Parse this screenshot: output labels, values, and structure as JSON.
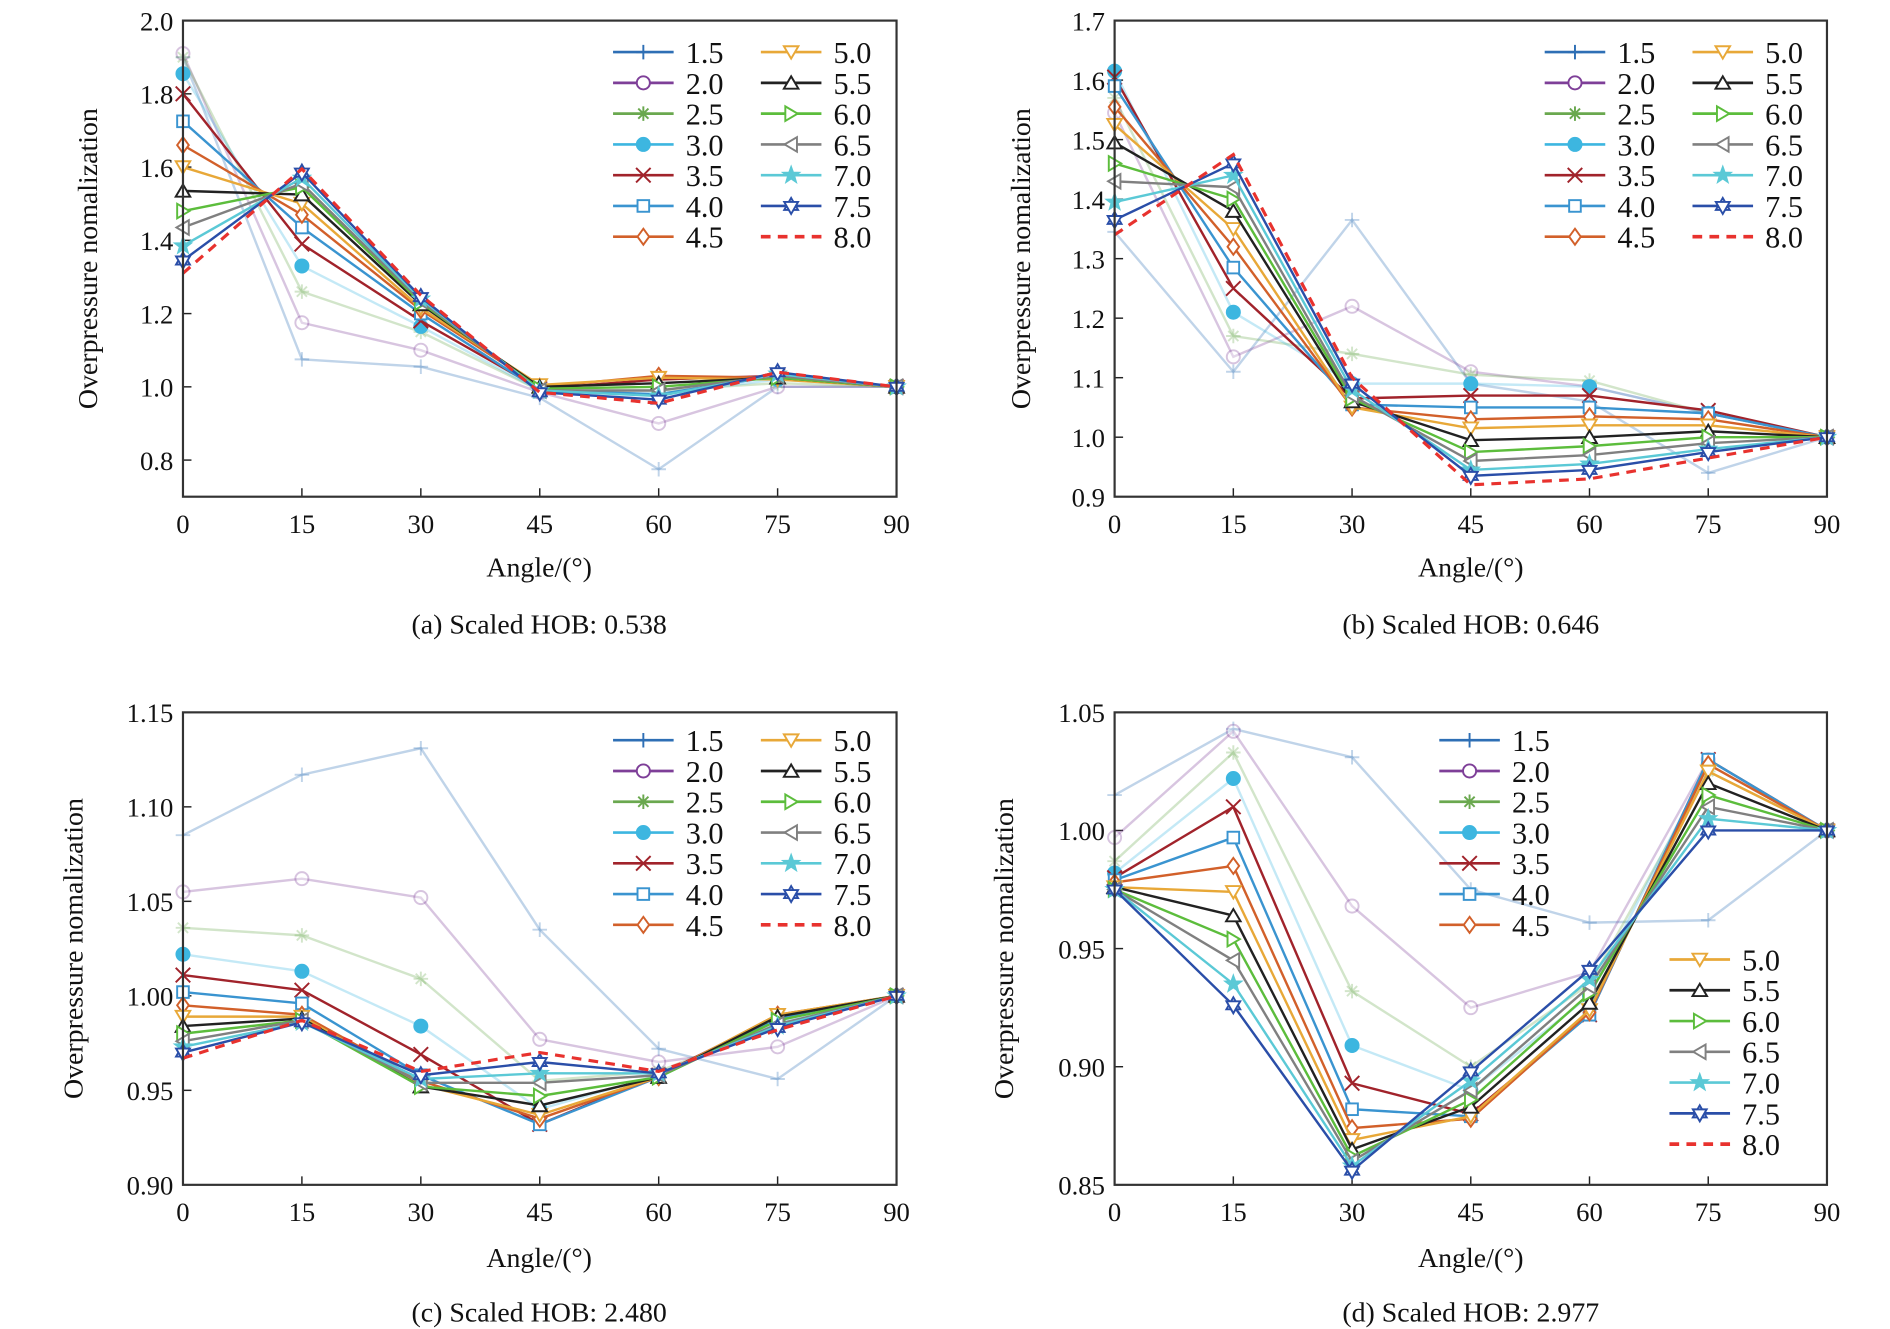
{
  "series_styles": [
    {
      "name": "1.5",
      "color": "#2e6fb5",
      "marker": "plus"
    },
    {
      "name": "2.0",
      "color": "#7e3f98",
      "marker": "circle-open"
    },
    {
      "name": "2.5",
      "color": "#6aa84f",
      "marker": "asterisk"
    },
    {
      "name": "3.0",
      "color": "#3db6e0",
      "marker": "circle-filled"
    },
    {
      "name": "3.5",
      "color": "#a1232b",
      "marker": "x"
    },
    {
      "name": "4.0",
      "color": "#3a94d0",
      "marker": "square-open"
    },
    {
      "name": "4.5",
      "color": "#d2602a",
      "marker": "diamond-open"
    },
    {
      "name": "5.0",
      "color": "#e8a838",
      "marker": "triangle-down-open"
    },
    {
      "name": "5.5",
      "color": "#222222",
      "marker": "triangle-up-open"
    },
    {
      "name": "6.0",
      "color": "#5cbd3c",
      "marker": "triangle-right-open"
    },
    {
      "name": "6.5",
      "color": "#808080",
      "marker": "triangle-left-open"
    },
    {
      "name": "7.0",
      "color": "#5bc9d6",
      "marker": "star-filled"
    },
    {
      "name": "7.5",
      "color": "#2a4ea8",
      "marker": "hexagram"
    },
    {
      "name": "8.0",
      "color": "#e8322e",
      "marker": "none",
      "dashed": true
    }
  ],
  "chart_data": [
    {
      "type": "line",
      "caption": "(a) Scaled HOB: 0.538",
      "xlabel": "Angle/(°)",
      "ylabel": "Overpressure nomalization",
      "x": [
        0,
        15,
        30,
        45,
        60,
        75,
        90
      ],
      "xticks": [
        "0",
        "15",
        "30",
        "45",
        "60",
        "75",
        "90"
      ],
      "yticks": [
        "0.8",
        "1.0",
        "1.2",
        "1.4",
        "1.6",
        "1.8",
        "2.0"
      ],
      "ylim": [
        0.7,
        2.0
      ],
      "legend": "top-right",
      "series": [
        {
          "name": "1.5",
          "values": [
            1.9,
            1.075,
            1.055,
            0.97,
            0.775,
            1.0,
            1.0
          ]
        },
        {
          "name": "2.0",
          "values": [
            1.91,
            1.175,
            1.1,
            0.985,
            0.9,
            1.0,
            1.0
          ]
        },
        {
          "name": "2.5",
          "values": [
            1.9,
            1.26,
            1.15,
            0.99,
            0.99,
            1.01,
            1.0
          ]
        },
        {
          "name": "3.0",
          "values": [
            1.855,
            1.33,
            1.165,
            0.99,
            0.98,
            1.02,
            1.0
          ]
        },
        {
          "name": "3.5",
          "values": [
            1.8,
            1.39,
            1.18,
            0.995,
            1.02,
            1.03,
            1.0
          ]
        },
        {
          "name": "4.0",
          "values": [
            1.725,
            1.435,
            1.2,
            0.99,
            0.98,
            1.03,
            1.0
          ]
        },
        {
          "name": "4.5",
          "values": [
            1.66,
            1.47,
            1.21,
            1.0,
            1.03,
            1.025,
            1.0
          ]
        },
        {
          "name": "5.0",
          "values": [
            1.6,
            1.5,
            1.215,
            1.005,
            1.025,
            1.02,
            1.0
          ]
        },
        {
          "name": "5.5",
          "values": [
            1.535,
            1.525,
            1.225,
            1.0,
            1.01,
            1.025,
            1.0
          ]
        },
        {
          "name": "6.0",
          "values": [
            1.48,
            1.545,
            1.23,
            0.995,
            1.0,
            1.025,
            1.0
          ]
        },
        {
          "name": "6.5",
          "values": [
            1.435,
            1.555,
            1.235,
            0.99,
            0.99,
            1.03,
            1.0
          ]
        },
        {
          "name": "7.0",
          "values": [
            1.385,
            1.57,
            1.24,
            0.99,
            0.975,
            1.035,
            1.0
          ]
        },
        {
          "name": "7.5",
          "values": [
            1.345,
            1.585,
            1.245,
            0.985,
            0.965,
            1.04,
            1.0
          ]
        },
        {
          "name": "8.0",
          "values": [
            1.31,
            1.595,
            1.25,
            0.985,
            0.955,
            1.04,
            1.0
          ]
        }
      ]
    },
    {
      "type": "line",
      "caption": "(b) Scaled HOB: 0.646",
      "xlabel": "Angle/(°)",
      "ylabel": "Overpressure nomalization",
      "x": [
        0,
        15,
        30,
        45,
        60,
        75,
        90
      ],
      "xticks": [
        "0",
        "15",
        "30",
        "45",
        "60",
        "75",
        "90"
      ],
      "yticks": [
        "0.9",
        "1.0",
        "1.1",
        "1.2",
        "1.3",
        "1.4",
        "1.5",
        "1.6",
        "1.7"
      ],
      "ylim": [
        0.9,
        1.7
      ],
      "legend": "top-right",
      "series": [
        {
          "name": "1.5",
          "values": [
            1.345,
            1.11,
            1.365,
            1.09,
            1.06,
            0.94,
            1.0
          ]
        },
        {
          "name": "2.0",
          "values": [
            1.545,
            1.135,
            1.22,
            1.11,
            1.085,
            1.04,
            1.0
          ]
        },
        {
          "name": "2.5",
          "values": [
            1.57,
            1.17,
            1.14,
            1.105,
            1.095,
            1.04,
            1.0
          ]
        },
        {
          "name": "3.0",
          "values": [
            1.615,
            1.21,
            1.09,
            1.09,
            1.085,
            1.04,
            1.0
          ]
        },
        {
          "name": "3.5",
          "values": [
            1.605,
            1.25,
            1.065,
            1.07,
            1.07,
            1.045,
            1.0
          ]
        },
        {
          "name": "4.0",
          "values": [
            1.59,
            1.285,
            1.055,
            1.05,
            1.05,
            1.04,
            1.0
          ]
        },
        {
          "name": "4.5",
          "values": [
            1.555,
            1.32,
            1.05,
            1.03,
            1.035,
            1.03,
            1.0
          ]
        },
        {
          "name": "5.0",
          "values": [
            1.525,
            1.35,
            1.05,
            1.015,
            1.02,
            1.02,
            1.0
          ]
        },
        {
          "name": "5.5",
          "values": [
            1.495,
            1.38,
            1.06,
            0.995,
            1.0,
            1.01,
            1.0
          ]
        },
        {
          "name": "6.0",
          "values": [
            1.46,
            1.4,
            1.065,
            0.975,
            0.985,
            1.0,
            1.0
          ]
        },
        {
          "name": "6.5",
          "values": [
            1.43,
            1.42,
            1.07,
            0.96,
            0.97,
            0.99,
            1.0
          ]
        },
        {
          "name": "7.0",
          "values": [
            1.395,
            1.44,
            1.08,
            0.945,
            0.955,
            0.98,
            1.0
          ]
        },
        {
          "name": "7.5",
          "values": [
            1.365,
            1.46,
            1.09,
            0.935,
            0.945,
            0.975,
            1.0
          ]
        },
        {
          "name": "8.0",
          "values": [
            1.34,
            1.475,
            1.1,
            0.92,
            0.93,
            0.965,
            1.0
          ]
        }
      ]
    },
    {
      "type": "line",
      "caption": "(c) Scaled HOB: 2.480",
      "xlabel": "Angle/(°)",
      "ylabel": "Overpressure nomalization",
      "x": [
        0,
        15,
        30,
        45,
        60,
        75,
        90
      ],
      "xticks": [
        "0",
        "15",
        "30",
        "45",
        "60",
        "75",
        "90"
      ],
      "yticks": [
        "0.90",
        "0.95",
        "1.00",
        "1.05",
        "1.10",
        "1.15"
      ],
      "ylim": [
        0.9,
        1.15
      ],
      "legend": "top-right",
      "series": [
        {
          "name": "1.5",
          "values": [
            1.085,
            1.117,
            1.131,
            1.035,
            0.972,
            0.956,
            1.0
          ]
        },
        {
          "name": "2.0",
          "values": [
            1.055,
            1.062,
            1.052,
            0.977,
            0.965,
            0.973,
            1.0
          ]
        },
        {
          "name": "2.5",
          "values": [
            1.036,
            1.032,
            1.009,
            0.955,
            0.96,
            0.985,
            1.0
          ]
        },
        {
          "name": "3.0",
          "values": [
            1.022,
            1.013,
            0.984,
            0.94,
            0.958,
            0.986,
            1.0
          ]
        },
        {
          "name": "3.5",
          "values": [
            1.011,
            1.003,
            0.969,
            0.932,
            0.958,
            0.989,
            1.0
          ]
        },
        {
          "name": "4.0",
          "values": [
            1.002,
            0.996,
            0.958,
            0.932,
            0.957,
            0.988,
            1.0
          ]
        },
        {
          "name": "4.5",
          "values": [
            0.995,
            0.99,
            0.955,
            0.935,
            0.957,
            0.99,
            1.0
          ]
        },
        {
          "name": "5.0",
          "values": [
            0.989,
            0.989,
            0.953,
            0.937,
            0.957,
            0.99,
            1.0
          ]
        },
        {
          "name": "5.5",
          "values": [
            0.984,
            0.988,
            0.952,
            0.942,
            0.957,
            0.989,
            1.0
          ]
        },
        {
          "name": "6.0",
          "values": [
            0.98,
            0.987,
            0.952,
            0.947,
            0.957,
            0.987,
            1.0
          ]
        },
        {
          "name": "6.5",
          "values": [
            0.976,
            0.987,
            0.954,
            0.954,
            0.958,
            0.985,
            1.0
          ]
        },
        {
          "name": "7.0",
          "values": [
            0.973,
            0.986,
            0.956,
            0.959,
            0.959,
            0.984,
            1.0
          ]
        },
        {
          "name": "7.5",
          "values": [
            0.97,
            0.986,
            0.958,
            0.965,
            0.959,
            0.983,
            1.0
          ]
        },
        {
          "name": "8.0",
          "values": [
            0.967,
            0.987,
            0.96,
            0.97,
            0.96,
            0.982,
            1.0
          ]
        }
      ]
    },
    {
      "type": "line",
      "caption": "(d) Scaled HOB: 2.977",
      "xlabel": "Angle/(°)",
      "ylabel": "Overpressure nomalization",
      "x": [
        0,
        15,
        30,
        45,
        60,
        75,
        90
      ],
      "xticks": [
        "0",
        "15",
        "30",
        "45",
        "60",
        "75",
        "90"
      ],
      "yticks": [
        "0.85",
        "0.90",
        "0.95",
        "1.00",
        "1.05"
      ],
      "ylim": [
        0.85,
        1.05
      ],
      "legend": "split: top-center and right",
      "series": [
        {
          "name": "1.5",
          "values": [
            1.015,
            1.043,
            1.031,
            0.975,
            0.961,
            0.962,
            1.0
          ]
        },
        {
          "name": "2.0",
          "values": [
            0.997,
            1.042,
            0.968,
            0.925,
            0.94,
            1.03,
            1.0
          ]
        },
        {
          "name": "2.5",
          "values": [
            0.987,
            1.033,
            0.932,
            0.9,
            0.935,
            1.025,
            1.0
          ]
        },
        {
          "name": "3.0",
          "values": [
            0.982,
            1.022,
            0.909,
            0.89,
            0.93,
            1.028,
            1.0
          ]
        },
        {
          "name": "3.5",
          "values": [
            0.98,
            1.01,
            0.893,
            0.88,
            0.922,
            1.03,
            1.0
          ]
        },
        {
          "name": "4.0",
          "values": [
            0.979,
            0.997,
            0.882,
            0.879,
            0.922,
            1.03,
            1.0
          ]
        },
        {
          "name": "4.5",
          "values": [
            0.978,
            0.985,
            0.874,
            0.878,
            0.923,
            1.028,
            1.0
          ]
        },
        {
          "name": "5.0",
          "values": [
            0.976,
            0.974,
            0.869,
            0.879,
            0.924,
            1.025,
            1.0
          ]
        },
        {
          "name": "5.5",
          "values": [
            0.976,
            0.964,
            0.865,
            0.883,
            0.927,
            1.02,
            1.0
          ]
        },
        {
          "name": "6.0",
          "values": [
            0.975,
            0.954,
            0.862,
            0.886,
            0.931,
            1.015,
            1.0
          ]
        },
        {
          "name": "6.5",
          "values": [
            0.975,
            0.945,
            0.86,
            0.89,
            0.934,
            1.01,
            1.0
          ]
        },
        {
          "name": "7.0",
          "values": [
            0.975,
            0.935,
            0.858,
            0.894,
            0.937,
            1.005,
            1.0
          ]
        },
        {
          "name": "7.5",
          "values": [
            0.975,
            0.926,
            0.856,
            0.898,
            0.941,
            1.0,
            1.0
          ]
        },
        {
          "name": "8.0",
          "values": null
        }
      ]
    }
  ]
}
